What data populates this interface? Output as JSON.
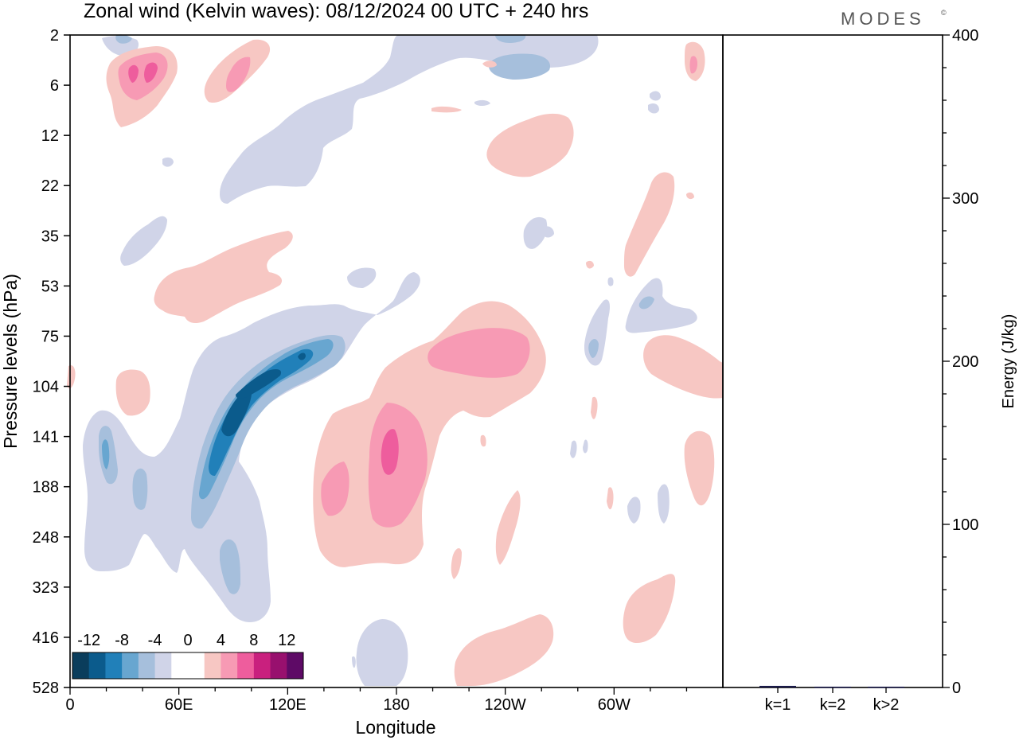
{
  "chart_data": {
    "type": "heatmap",
    "title": "Zonal wind (Kelvin waves):  08/12/2024  00 UTC  + 240 hrs",
    "brand": "MODES",
    "brand_mark": "©",
    "xlabel": "Longitude",
    "ylabel": "Pressure levels (hPa)",
    "x_ticks": [
      "0",
      "60E",
      "120E",
      "180",
      "120W",
      "60W"
    ],
    "x_tick_degrees": [
      0,
      60,
      120,
      180,
      240,
      300
    ],
    "xlim": [
      0,
      360
    ],
    "y_ticks": [
      "2",
      "6",
      "12",
      "22",
      "35",
      "53",
      "75",
      "104",
      "141",
      "188",
      "248",
      "323",
      "416",
      "528"
    ],
    "colorbar": {
      "labels": [
        "-12",
        "-8",
        "-4",
        "0",
        "4",
        "8",
        "12"
      ],
      "colors": [
        "#0a3d5c",
        "#0b5b8c",
        "#2180b9",
        "#68a6d0",
        "#a6bfdc",
        "#d0d4e8",
        "#ffffff",
        "#ffffff",
        "#f7c7c3",
        "#f79ab4",
        "#ee5d9d",
        "#c9207e",
        "#98106e",
        "#5e0a66"
      ]
    },
    "energy_panel": {
      "ylabel": "Energy (J/kg)",
      "y_ticks": [
        "0",
        "100",
        "200",
        "300",
        "400"
      ],
      "ylim": [
        0,
        400
      ],
      "categories": [
        "k=1",
        "k=2",
        "k>2"
      ],
      "values": [
        1.0,
        0.5,
        0.5
      ],
      "bar_color": "#1a1a4a"
    },
    "contour_colors": {
      "blue_1": "#d0d4e8",
      "blue_2": "#a6bfdc",
      "blue_3": "#68a6d0",
      "blue_4": "#2180b9",
      "blue_5": "#0b5b8c",
      "pink_1": "#f7c7c3",
      "pink_2": "#f79ab4",
      "pink_3": "#ee5d9d"
    }
  }
}
